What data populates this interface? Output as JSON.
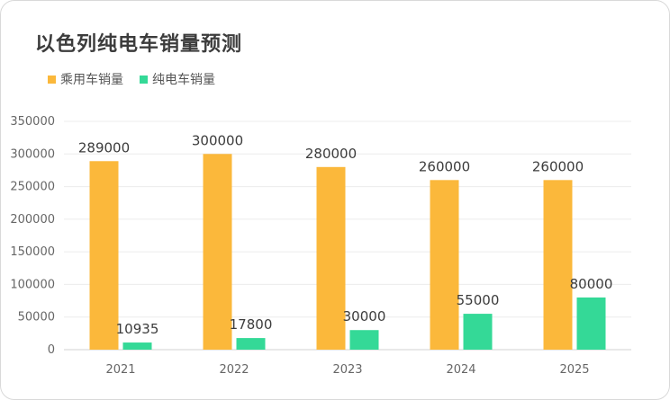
{
  "chart_data": {
    "type": "bar",
    "title": "以色列纯电车销量预测",
    "categories": [
      "2021",
      "2022",
      "2023",
      "2024",
      "2025"
    ],
    "series": [
      {
        "name": "乘用车销量",
        "values": [
          289000,
          300000,
          280000,
          260000,
          260000
        ],
        "color": "#FBB83B"
      },
      {
        "name": "纯电车销量",
        "values": [
          10935,
          17800,
          30000,
          55000,
          80000
        ],
        "color": "#34D997"
      }
    ],
    "ylim": [
      0,
      350000
    ],
    "yticks": [
      0,
      50000,
      100000,
      150000,
      200000,
      250000,
      300000,
      350000
    ],
    "grid": true,
    "legend_position": "top-left",
    "xlabel": "",
    "ylabel": ""
  }
}
